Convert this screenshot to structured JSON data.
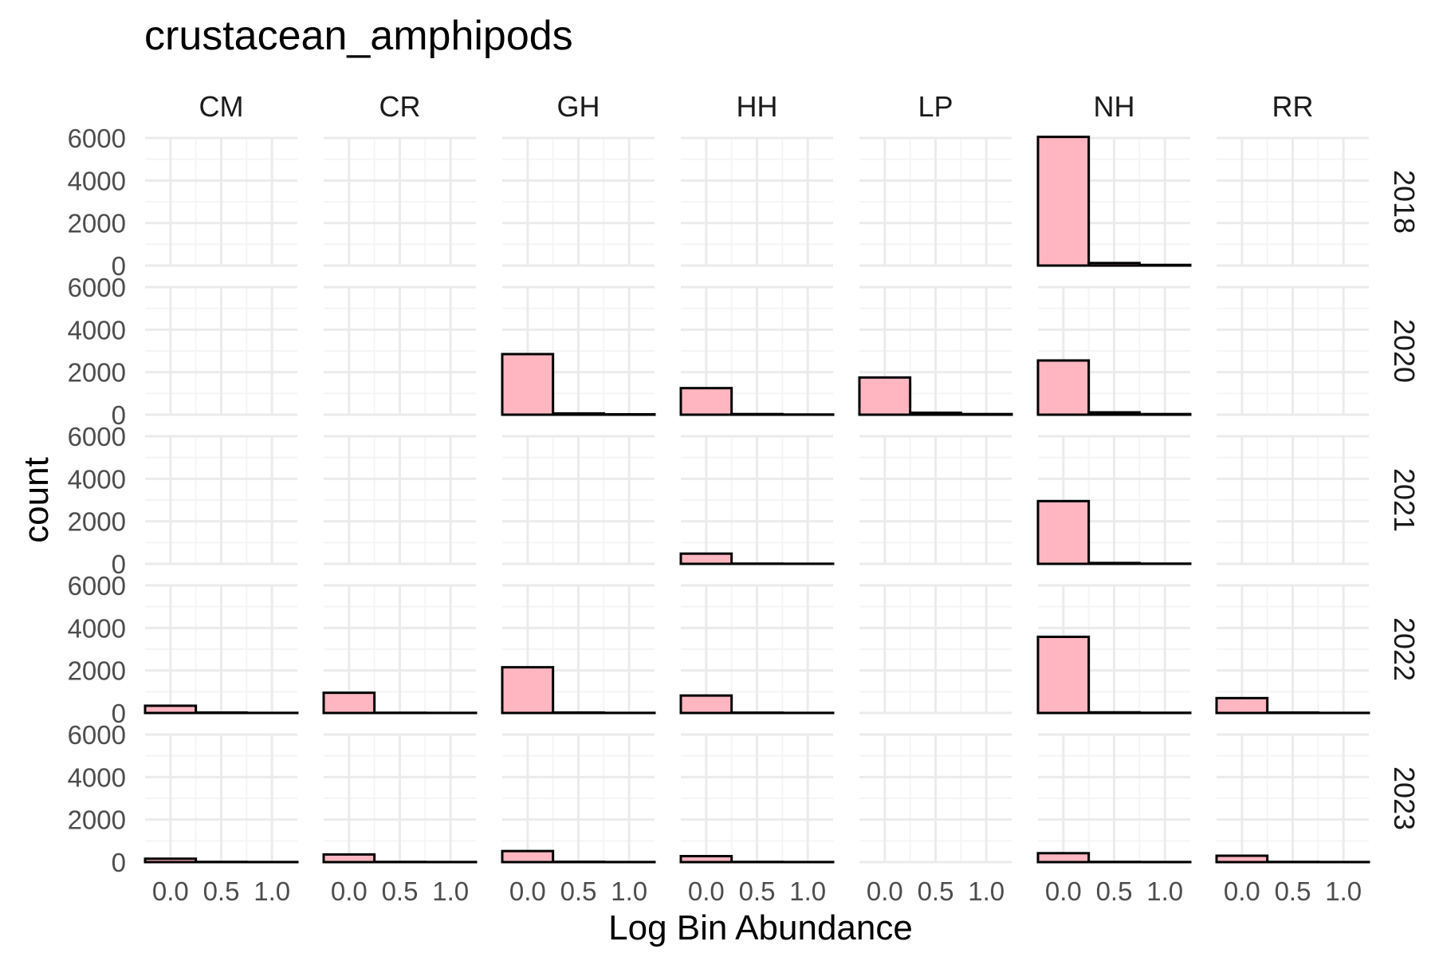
{
  "chart_data": {
    "type": "bar",
    "title": "crustacean_amphipods",
    "xlabel": "Log Bin Abundance",
    "ylabel": "count",
    "columns": [
      "CM",
      "CR",
      "GH",
      "HH",
      "LP",
      "NH",
      "RR"
    ],
    "rows": [
      "2018",
      "2020",
      "2021",
      "2022",
      "2023"
    ],
    "bin_centers": [
      0.0,
      0.5,
      1.0
    ],
    "bin_width": 0.5,
    "xlim": [
      -0.25,
      1.25
    ],
    "ylim": [
      0,
      6000
    ],
    "x_ticks": [
      0.0,
      0.5,
      1.0
    ],
    "x_tick_labels": [
      "0.0",
      "0.5",
      "1.0"
    ],
    "y_ticks": [
      0,
      2000,
      4000,
      6000
    ],
    "y_tick_labels": [
      "0",
      "2000",
      "4000",
      "6000"
    ],
    "bar_fill": "#ffb6c1",
    "bar_stroke": "#000000",
    "grid": true,
    "panels": [
      {
        "row": "2018",
        "col": "NH",
        "values": [
          6050,
          120,
          30
        ]
      },
      {
        "row": "2020",
        "col": "GH",
        "values": [
          2850,
          60,
          20
        ]
      },
      {
        "row": "2020",
        "col": "HH",
        "values": [
          1250,
          30,
          10
        ]
      },
      {
        "row": "2020",
        "col": "LP",
        "values": [
          1750,
          90,
          30
        ]
      },
      {
        "row": "2020",
        "col": "NH",
        "values": [
          2550,
          110,
          30
        ]
      },
      {
        "row": "2021",
        "col": "HH",
        "values": [
          480,
          10,
          5
        ]
      },
      {
        "row": "2021",
        "col": "NH",
        "values": [
          2950,
          40,
          10
        ]
      },
      {
        "row": "2022",
        "col": "CM",
        "values": [
          340,
          20,
          5
        ]
      },
      {
        "row": "2022",
        "col": "CR",
        "values": [
          950,
          10,
          5
        ]
      },
      {
        "row": "2022",
        "col": "GH",
        "values": [
          2150,
          20,
          5
        ]
      },
      {
        "row": "2022",
        "col": "HH",
        "values": [
          820,
          15,
          5
        ]
      },
      {
        "row": "2022",
        "col": "NH",
        "values": [
          3580,
          30,
          10
        ]
      },
      {
        "row": "2022",
        "col": "RR",
        "values": [
          700,
          20,
          5
        ]
      },
      {
        "row": "2023",
        "col": "CM",
        "values": [
          160,
          10,
          5
        ]
      },
      {
        "row": "2023",
        "col": "CR",
        "values": [
          360,
          10,
          5
        ]
      },
      {
        "row": "2023",
        "col": "GH",
        "values": [
          520,
          15,
          5
        ]
      },
      {
        "row": "2023",
        "col": "HH",
        "values": [
          280,
          10,
          5
        ]
      },
      {
        "row": "2023",
        "col": "NH",
        "values": [
          420,
          10,
          5
        ]
      },
      {
        "row": "2023",
        "col": "RR",
        "values": [
          300,
          10,
          5
        ]
      }
    ]
  }
}
